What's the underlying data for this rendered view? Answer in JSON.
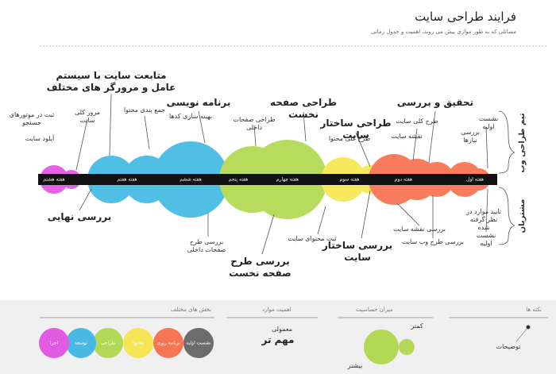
{
  "header": {
    "title": "فرایند طراحی سایت",
    "subtitle": "مسائلی که به طور موازی پیش می روند، اهمیت و جدول زمانی"
  },
  "timeline": {
    "weeks": [
      "هفته اول",
      "هفته دوم",
      "هفته سوم",
      "هفته چهارم",
      "هفته پنجم",
      "هفته ششم",
      "هفته هفتم",
      "هفته هشتم"
    ]
  },
  "sides": {
    "team": "تیم طراحی وب",
    "clients": "مشتریان"
  },
  "team_tasks": [
    "تحقیق و بررسی",
    "نشست اولیه",
    "بررسی نیازها",
    "طرح کلی سایت",
    "نقشه سایت",
    "طراحی ساختار سایت",
    "طرح کلی محتوا",
    "طراحی صفحه نخست",
    "طراحی صفحات داخلی",
    "برنامه نویسی",
    "بهینه سازی کدها",
    "جمع بندی محتوا",
    "متابعت سایت با سیستم عامل و مرورگر های مختلف",
    "مرور کلی سایت",
    "ثبت در موتورهای جستجو",
    "آپلود سایت"
  ],
  "client_tasks": [
    "نشست اولیه",
    "تایید موارد در نظر گرفته شده",
    "بررسی طرح وب سایت",
    "بررسی نقشه سایت",
    "بررسی ساختار سایت",
    "ثبت محتوای سایت",
    "بررسی طرح صفحه نخست",
    "بررسی طرح صفحات داخلی",
    "بررسی نهایی"
  ],
  "legend": {
    "notes": {
      "title": "نکته ها",
      "item": "توضیحات"
    },
    "sensitivity": {
      "title": "میزان حساسیت",
      "less": "کمتر",
      "more": "بیشتر"
    },
    "importance": {
      "title": "اهمیت موارد",
      "normal": "معمولی",
      "important": "مهم تر"
    },
    "sections": {
      "title": "بخش های مختلف",
      "items": [
        "نشست اولیه",
        "برنامه ریزی",
        "محتوا",
        "طراحی",
        "توسعه",
        "اجرا"
      ]
    }
  }
}
